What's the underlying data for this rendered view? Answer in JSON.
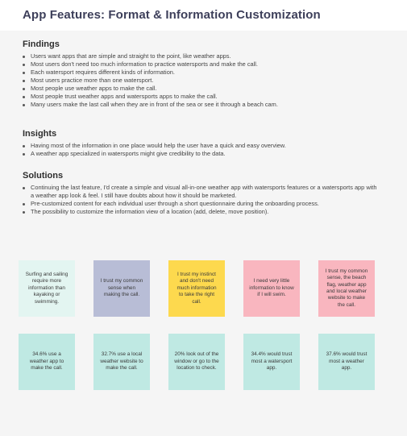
{
  "title": "App Features: Format & Information Customization",
  "findings": {
    "heading": "Findings",
    "items": [
      "Users want apps that are simple and straight to the point, like weather apps.",
      "Most users don't need too much information to practice watersports and make the call.",
      "Each watersport requires different kinds of information.",
      "Most users practice more than one watersport.",
      "Most people use weather apps to make the call.",
      "Most people trust weather apps and watersports apps to make the call.",
      "Many users make the last call when they are in front of the sea or see it through a beach cam."
    ]
  },
  "insights": {
    "heading": "Insights",
    "items": [
      "Having most of the information in one place would help the user have a quick and easy overview.",
      "A weather app specialized in watersports might give credibility to the data."
    ]
  },
  "solutions": {
    "heading": "Solutions",
    "items": [
      "Continuing the last feature, I'd create a simple and visual all-in-one weather app with watersports features or a watersports app with a weather app look & feel. I still have doubts about how it should be marketed.",
      "Pre-customized content for each individual user through a short questionnaire during the onboarding process.",
      "The possibility to customize the information view of a location (add, delete, move position)."
    ]
  },
  "colors": {
    "mint_light": "#e3f5f1",
    "lavender": "#b8bdd6",
    "yellow": "#fdd94e",
    "pink": "#f9b6bf",
    "teal": "#bfe9e3"
  },
  "notes_row1": [
    "Surfing and sailing require more information than kayaking or swimming.",
    "I trust my common sense when making the call.",
    "I trust my instinct and don't need much information to take the right call.",
    "I need very little information to know if I will swim.",
    "I trust my common sense, the beach flag, weather app and local weather website to make the call."
  ],
  "notes_row2": [
    "34.6% use a weather app to make the call.",
    "32.7% use a local weather website to make the call.",
    "20% look out of the window or go to the location to check.",
    "34.4% would trust most a watersport app.",
    "37.6% would trust most a weather app."
  ]
}
